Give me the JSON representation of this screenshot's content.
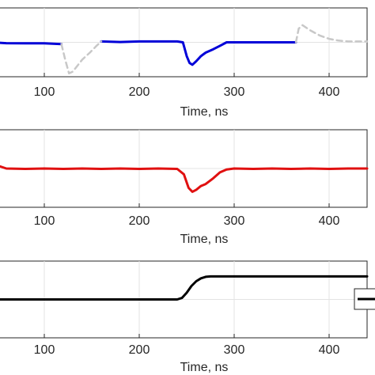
{
  "chart_data": [
    {
      "type": "line",
      "xlabel": "Time, ns",
      "ylabel": "",
      "xlim": [
        45,
        440
      ],
      "ylim": [
        -2,
        2
      ],
      "grid": true,
      "xticks": [
        100,
        200,
        300,
        400
      ],
      "xtick_labels": [
        "100",
        "200",
        "300",
        "400"
      ],
      "series": [
        {
          "style": "solid",
          "color": "#0000d8",
          "segments": [
            {
              "x": [
                45,
                60,
                80,
                100,
                118
              ],
              "y": [
                0.0,
                -0.05,
                -0.06,
                -0.06,
                -0.1
              ]
            },
            {
              "x": [
                160,
                180,
                200,
                220,
                240,
                246,
                250,
                253,
                256,
                260,
                265,
                270,
                278,
                285,
                292,
                300,
                320,
                340,
                360,
                365
              ],
              "y": [
                0.05,
                0.02,
                0.05,
                0.05,
                0.05,
                0.0,
                -0.8,
                -1.2,
                -1.3,
                -1.1,
                -0.8,
                -0.6,
                -0.4,
                -0.2,
                0.0,
                0.0,
                0.0,
                0.0,
                0.0,
                0.0
              ]
            }
          ]
        },
        {
          "style": "dashed",
          "color": "#c8c8c8",
          "segments": [
            {
              "x": [
                118,
                122,
                126,
                130,
                140,
                148,
                155,
                160
              ],
              "y": [
                -0.1,
                -1.0,
                -1.8,
                -1.7,
                -1.0,
                -0.6,
                -0.2,
                0.05
              ]
            },
            {
              "x": [
                365,
                368,
                372,
                380,
                390,
                400,
                410,
                420,
                440
              ],
              "y": [
                0.0,
                0.8,
                1.0,
                0.7,
                0.4,
                0.2,
                0.1,
                0.05,
                0.05
              ]
            }
          ]
        }
      ]
    },
    {
      "type": "line",
      "xlabel": "Time, ns",
      "ylabel": "",
      "xlim": [
        45,
        440
      ],
      "ylim": [
        -2,
        2
      ],
      "grid": true,
      "xticks": [
        100,
        200,
        300,
        400
      ],
      "xtick_labels": [
        "100",
        "200",
        "300",
        "400"
      ],
      "series": [
        {
          "style": "solid",
          "color": "#e01010",
          "segments": [
            {
              "x": [
                45,
                60,
                80,
                100,
                120,
                140,
                160,
                180,
                200,
                220,
                240,
                247,
                252,
                256,
                260,
                265,
                270,
                278,
                285,
                292,
                300,
                320,
                340,
                360,
                380,
                400,
                420,
                440
              ],
              "y": [
                0.25,
                0.0,
                -0.02,
                0.0,
                -0.02,
                0.0,
                -0.02,
                0.0,
                -0.02,
                0.0,
                -0.02,
                -0.3,
                -1.0,
                -1.2,
                -1.1,
                -0.9,
                -0.8,
                -0.5,
                -0.2,
                -0.05,
                0.0,
                -0.02,
                0.0,
                -0.02,
                0.0,
                -0.02,
                0.0,
                0.0
              ]
            }
          ]
        }
      ]
    },
    {
      "type": "line",
      "xlabel": "Time, ns",
      "ylabel": "",
      "xlim": [
        45,
        440
      ],
      "ylim": [
        -2,
        2
      ],
      "grid": true,
      "xticks": [
        100,
        200,
        300,
        400
      ],
      "xtick_labels": [
        "100",
        "200",
        "300",
        "400"
      ],
      "legend_placement": "right",
      "series": [
        {
          "style": "solid",
          "color": "#000000",
          "segments": [
            {
              "x": [
                45,
                100,
                150,
                200,
                240,
                245,
                250,
                255,
                260,
                265,
                270,
                275,
                280,
                300,
                350,
                400,
                440
              ],
              "y": [
                0.0,
                0.0,
                0.0,
                0.0,
                0.0,
                0.08,
                0.35,
                0.7,
                0.95,
                1.1,
                1.18,
                1.2,
                1.2,
                1.2,
                1.2,
                1.2,
                1.2
              ]
            }
          ]
        }
      ]
    }
  ]
}
